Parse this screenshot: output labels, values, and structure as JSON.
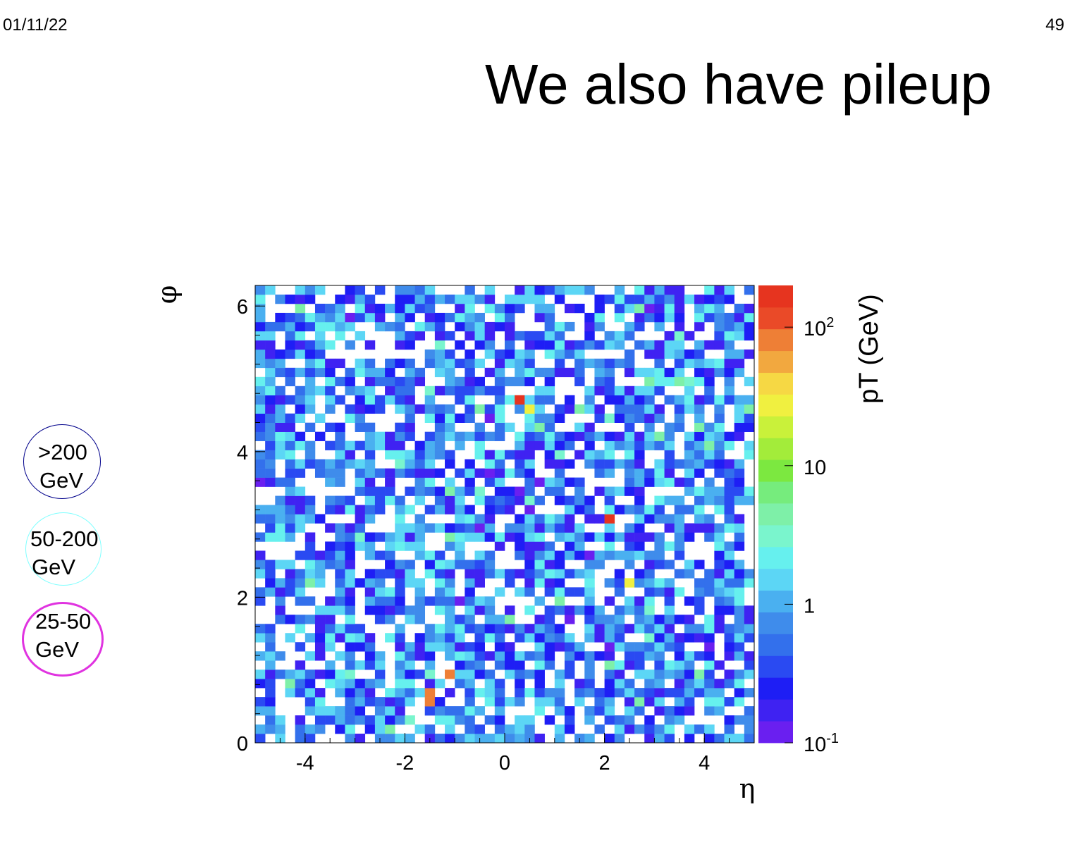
{
  "slide": {
    "date": "01/11/22",
    "page_number": "49",
    "title": "We also have pileup"
  },
  "legend": [
    {
      "line1": ">200",
      "line2": "GeV",
      "color": "#00008b"
    },
    {
      "line1": "50-200",
      "line2": "GeV",
      "color": "#7fffff"
    },
    {
      "line1": "25-50",
      "line2": "GeV",
      "color": "#e033e0"
    }
  ],
  "chart_data": {
    "type": "heatmap",
    "xlabel": "η",
    "ylabel": "φ",
    "zlabel": "pT (GeV)",
    "xlim": [
      -5,
      5
    ],
    "ylim": [
      0,
      6.283
    ],
    "zlim": [
      0.1,
      200
    ],
    "z_scale": "log",
    "nx": 50,
    "ny": 50,
    "x_ticks": [
      "-4",
      "-2",
      "0",
      "2",
      "4"
    ],
    "x_tick_values": [
      -4,
      -2,
      0,
      2,
      4
    ],
    "y_ticks": [
      "0",
      "2",
      "4",
      "6"
    ],
    "y_tick_values": [
      0,
      2,
      4,
      6
    ],
    "z_ticks": [
      {
        "value": 0.1,
        "base": "10",
        "exp": "-1"
      },
      {
        "value": 1,
        "base": "1",
        "exp": ""
      },
      {
        "value": 10,
        "base": "10",
        "exp": ""
      },
      {
        "value": 100,
        "base": "10",
        "exp": "2"
      }
    ],
    "palette": [
      "#6a1ff0",
      "#3f22f2",
      "#1e1ef5",
      "#2a4af2",
      "#3370ec",
      "#3f8ceb",
      "#4ab0f0",
      "#5cd6f5",
      "#66f0ee",
      "#7af5cd",
      "#7ef0a8",
      "#76ec7d",
      "#7ce840",
      "#a3ec3a",
      "#c9f13a",
      "#f0f040",
      "#f6d844",
      "#f2a83f",
      "#ee7f36",
      "#ea4a28",
      "#e6341f"
    ],
    "hot_cells": [
      {
        "eta": 0.3,
        "phi": 4.75,
        "pt": 150
      },
      {
        "eta": 0.5,
        "phi": 4.6,
        "pt": 30
      },
      {
        "eta": 2.1,
        "phi": 3.1,
        "pt": 150
      },
      {
        "eta": -1.1,
        "phi": 0.95,
        "pt": 70
      },
      {
        "eta": -1.5,
        "phi": 0.7,
        "pt": 70
      },
      {
        "eta": -1.5,
        "phi": 0.6,
        "pt": 70
      },
      {
        "eta": 2.5,
        "phi": 2.25,
        "pt": 25
      }
    ]
  }
}
